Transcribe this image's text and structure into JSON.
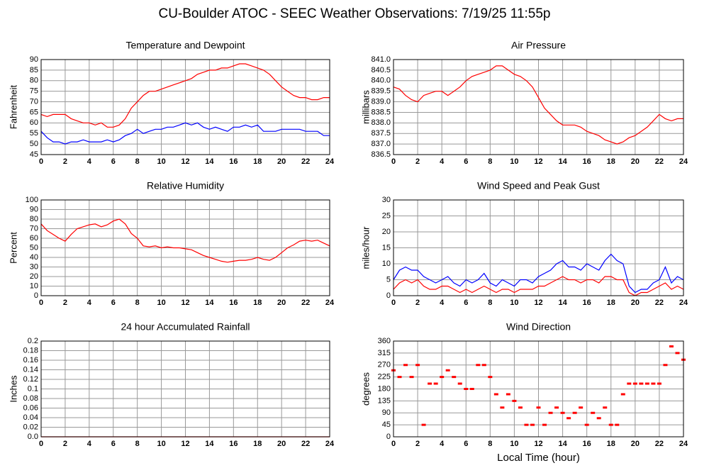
{
  "title": "CU-Boulder ATOC - SEEC Weather Observations: 7/19/25 11:55p",
  "chart_data": [
    {
      "type": "line",
      "title": "Temperature and Dewpoint",
      "y_label": "Fahrenheit",
      "xlim": [
        0,
        24
      ],
      "xticks": [
        0,
        2,
        4,
        6,
        8,
        10,
        12,
        14,
        16,
        18,
        20,
        22,
        24
      ],
      "ylim": [
        45,
        90
      ],
      "yticks": [
        45,
        50,
        55,
        60,
        65,
        70,
        75,
        80,
        85,
        90
      ],
      "grid": true,
      "x": [
        0,
        0.5,
        1,
        1.5,
        2,
        2.5,
        3,
        3.5,
        4,
        4.5,
        5,
        5.5,
        6,
        6.5,
        7,
        7.5,
        8,
        8.5,
        9,
        9.5,
        10,
        10.5,
        11,
        11.5,
        12,
        12.5,
        13,
        13.5,
        14,
        14.5,
        15,
        15.5,
        16,
        16.5,
        17,
        17.5,
        18,
        18.5,
        19,
        19.5,
        20,
        20.5,
        21,
        21.5,
        22,
        22.5,
        23,
        23.5,
        24
      ],
      "series": [
        {
          "color": "#ff0000",
          "values": [
            64,
            63,
            64,
            64,
            64,
            62,
            61,
            60,
            60,
            59,
            60,
            58,
            58,
            59,
            62,
            67,
            70,
            73,
            75,
            75,
            76,
            77,
            78,
            79,
            80,
            81,
            83,
            84,
            85,
            85,
            86,
            86,
            87,
            88,
            88,
            87,
            86,
            85,
            83,
            80,
            77,
            75,
            73,
            72,
            72,
            71,
            71,
            72,
            72
          ]
        },
        {
          "color": "#0000ff",
          "values": [
            56,
            53,
            51,
            51,
            50,
            51,
            51,
            52,
            51,
            51,
            51,
            52,
            51,
            52,
            54,
            55,
            57,
            55,
            56,
            57,
            57,
            58,
            58,
            59,
            60,
            59,
            60,
            58,
            57,
            58,
            57,
            56,
            58,
            58,
            59,
            58,
            59,
            56,
            56,
            56,
            57,
            57,
            57,
            57,
            56,
            56,
            56,
            54,
            54
          ]
        }
      ]
    },
    {
      "type": "line",
      "title": "Air Pressure",
      "y_label": "millibars",
      "xlim": [
        0,
        24
      ],
      "xticks": [
        0,
        2,
        4,
        6,
        8,
        10,
        12,
        14,
        16,
        18,
        20,
        22,
        24
      ],
      "ylim": [
        836.5,
        841.0
      ],
      "yticks": [
        836.5,
        {
          "value": 837,
          "label": "837.0"
        },
        837.5,
        {
          "value": 838,
          "label": "838.0"
        },
        838.5,
        {
          "value": 839,
          "label": "839.0"
        },
        839.5,
        {
          "value": 840,
          "label": "840.0"
        },
        840.5,
        {
          "value": 841,
          "label": "841.0"
        }
      ],
      "grid": true,
      "x": [
        0,
        0.5,
        1,
        1.5,
        2,
        2.5,
        3,
        3.5,
        4,
        4.5,
        5,
        5.5,
        6,
        6.5,
        7,
        7.5,
        8,
        8.5,
        9,
        9.5,
        10,
        10.5,
        11,
        11.5,
        12,
        12.5,
        13,
        13.5,
        14,
        14.5,
        15,
        15.5,
        16,
        16.5,
        17,
        17.5,
        18,
        18.5,
        19,
        19.5,
        20,
        20.5,
        21,
        21.5,
        22,
        22.5,
        23,
        23.5,
        24
      ],
      "series": [
        {
          "color": "#ff0000",
          "values": [
            839.7,
            839.6,
            839.3,
            839.1,
            839.0,
            839.3,
            839.4,
            839.5,
            839.5,
            839.3,
            839.5,
            839.7,
            840.0,
            840.2,
            840.3,
            840.4,
            840.5,
            840.7,
            840.7,
            840.5,
            840.3,
            840.2,
            840.0,
            839.7,
            839.2,
            838.7,
            838.4,
            838.1,
            837.9,
            837.9,
            837.9,
            837.8,
            837.6,
            837.5,
            837.4,
            837.2,
            837.1,
            837.0,
            837.1,
            837.3,
            837.4,
            837.6,
            837.8,
            838.1,
            838.4,
            838.2,
            838.1,
            838.2,
            838.2
          ]
        }
      ]
    },
    {
      "type": "line",
      "title": "Relative Humidity",
      "y_label": "Percent",
      "xlim": [
        0,
        24
      ],
      "xticks": [
        0,
        2,
        4,
        6,
        8,
        10,
        12,
        14,
        16,
        18,
        20,
        22,
        24
      ],
      "ylim": [
        0,
        100
      ],
      "yticks": [
        0,
        10,
        20,
        30,
        40,
        50,
        60,
        70,
        80,
        90,
        100
      ],
      "grid": true,
      "x": [
        0,
        0.5,
        1,
        1.5,
        2,
        2.5,
        3,
        3.5,
        4,
        4.5,
        5,
        5.5,
        6,
        6.5,
        7,
        7.5,
        8,
        8.5,
        9,
        9.5,
        10,
        10.5,
        11,
        11.5,
        12,
        12.5,
        13,
        13.5,
        14,
        14.5,
        15,
        15.5,
        16,
        16.5,
        17,
        17.5,
        18,
        18.5,
        19,
        19.5,
        20,
        20.5,
        21,
        21.5,
        22,
        22.5,
        23,
        23.5,
        24
      ],
      "series": [
        {
          "color": "#ff0000",
          "values": [
            75,
            68,
            64,
            60,
            57,
            64,
            70,
            72,
            74,
            75,
            72,
            74,
            78,
            80,
            75,
            65,
            60,
            52,
            51,
            52,
            50,
            51,
            50,
            50,
            49,
            48,
            45,
            42,
            40,
            38,
            36,
            35,
            36,
            37,
            37,
            38,
            40,
            38,
            37,
            40,
            45,
            50,
            53,
            57,
            58,
            57,
            58,
            55,
            52
          ]
        }
      ]
    },
    {
      "type": "line",
      "title": "Wind Speed and Peak Gust",
      "y_label": "miles/hour",
      "xlim": [
        0,
        24
      ],
      "xticks": [
        0,
        2,
        4,
        6,
        8,
        10,
        12,
        14,
        16,
        18,
        20,
        22,
        24
      ],
      "ylim": [
        0,
        30
      ],
      "yticks": [
        0,
        5,
        10,
        15,
        20,
        25,
        30
      ],
      "grid": true,
      "x": [
        0,
        0.5,
        1,
        1.5,
        2,
        2.5,
        3,
        3.5,
        4,
        4.5,
        5,
        5.5,
        6,
        6.5,
        7,
        7.5,
        8,
        8.5,
        9,
        9.5,
        10,
        10.5,
        11,
        11.5,
        12,
        12.5,
        13,
        13.5,
        14,
        14.5,
        15,
        15.5,
        16,
        16.5,
        17,
        17.5,
        18,
        18.5,
        19,
        19.5,
        20,
        20.5,
        21,
        21.5,
        22,
        22.5,
        23,
        23.5,
        24
      ],
      "series": [
        {
          "color": "#0000ff",
          "values": [
            5,
            8,
            9,
            8,
            8,
            6,
            5,
            4,
            5,
            6,
            4,
            3,
            5,
            4,
            5,
            7,
            4,
            3,
            5,
            4,
            3,
            5,
            5,
            4,
            6,
            7,
            8,
            10,
            11,
            9,
            9,
            8,
            10,
            9,
            8,
            11,
            13,
            11,
            10,
            3,
            1,
            2,
            2,
            4,
            5,
            9,
            4,
            6,
            5
          ]
        },
        {
          "color": "#ff0000",
          "values": [
            2,
            4,
            5,
            4,
            5,
            3,
            2,
            2,
            3,
            3,
            2,
            1,
            2,
            1,
            2,
            3,
            2,
            1,
            2,
            2,
            1,
            2,
            2,
            2,
            3,
            3,
            4,
            5,
            6,
            5,
            5,
            4,
            5,
            5,
            4,
            6,
            6,
            5,
            5,
            1,
            0,
            1,
            1,
            2,
            3,
            4,
            2,
            3,
            2
          ]
        }
      ]
    },
    {
      "type": "line",
      "title": "24 hour Accumulated Rainfall",
      "y_label": "Inches",
      "xlim": [
        0,
        24
      ],
      "xticks": [
        0,
        2,
        4,
        6,
        8,
        10,
        12,
        14,
        16,
        18,
        20,
        22,
        24
      ],
      "ylim": [
        0,
        0.2
      ],
      "yticks": [
        {
          "value": 0,
          "label": "0.0"
        },
        0.02,
        0.04,
        0.06,
        0.08,
        0.1,
        0.12,
        0.14,
        0.16,
        0.18,
        0.2
      ],
      "grid": true,
      "x": [
        0,
        24
      ],
      "series": [
        {
          "color": "#ff0000",
          "values": [
            0,
            0
          ]
        }
      ]
    },
    {
      "type": "scatter",
      "title": "Wind Direction",
      "y_label": "degrees",
      "x_label": "Local Time (hour)",
      "xlim": [
        0,
        24
      ],
      "xticks": [
        0,
        2,
        4,
        6,
        8,
        10,
        12,
        14,
        16,
        18,
        20,
        22,
        24
      ],
      "ylim": [
        0,
        360
      ],
      "yticks": [
        0,
        45,
        90,
        135,
        180,
        225,
        270,
        315,
        360
      ],
      "grid": true,
      "x": [
        0,
        0.5,
        1,
        1.5,
        2,
        2.5,
        3,
        3.5,
        4,
        4.5,
        5,
        5.5,
        6,
        6.5,
        7,
        7.5,
        8,
        8.5,
        9,
        9.5,
        10,
        10.5,
        11,
        11.5,
        12,
        12.5,
        13,
        13.5,
        14,
        14.5,
        15,
        15.5,
        16,
        16.5,
        17,
        17.5,
        18,
        18.5,
        19,
        19.5,
        20,
        20.5,
        21,
        21.5,
        22,
        22.5,
        23,
        23.5,
        24
      ],
      "series": [
        {
          "color": "#ff0000",
          "values": [
            250,
            225,
            270,
            225,
            270,
            45,
            200,
            200,
            225,
            250,
            225,
            200,
            180,
            180,
            270,
            270,
            225,
            160,
            110,
            160,
            135,
            110,
            45,
            45,
            110,
            45,
            90,
            110,
            90,
            70,
            90,
            110,
            45,
            90,
            70,
            110,
            45,
            45,
            160,
            200,
            200,
            200,
            200,
            200,
            200,
            270,
            340,
            315,
            290
          ]
        }
      ]
    }
  ]
}
